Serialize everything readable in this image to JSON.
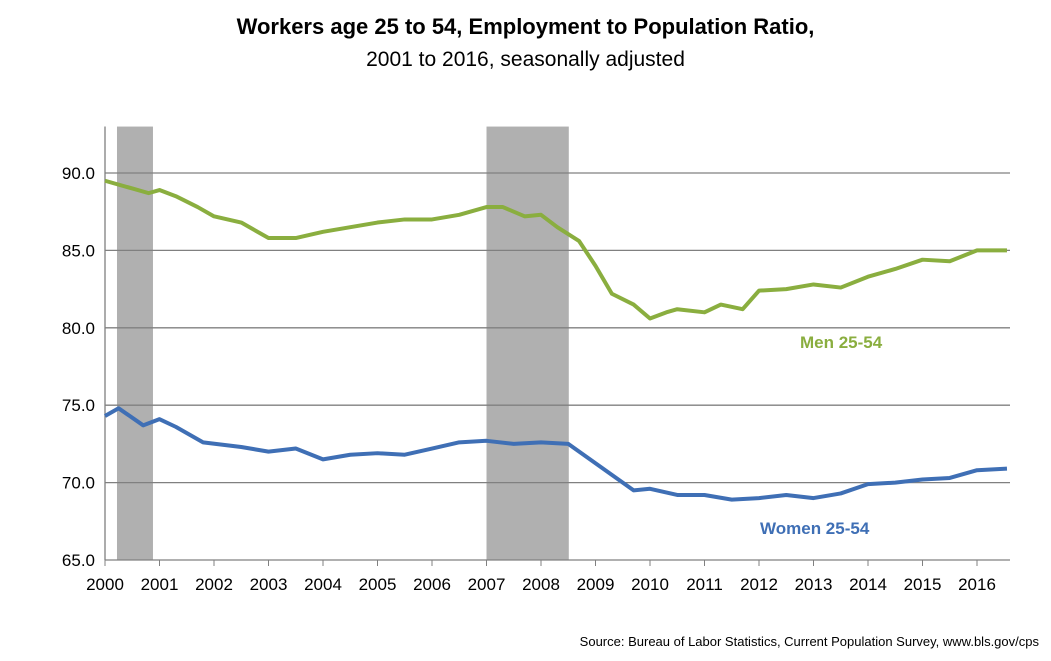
{
  "chart_data": {
    "type": "line",
    "title": "Workers age 25 to 54, Employment to Population Ratio,",
    "subtitle": "2001 to 2016, seasonally adjusted",
    "source": "Source: Bureau of Labor Statistics, Current Population Survey, www.bls.gov/cps",
    "ylim": [
      65,
      93
    ],
    "xlim": [
      2000,
      2016.6
    ],
    "yticks": [
      "65.0",
      "70.0",
      "75.0",
      "80.0",
      "85.0",
      "90.0"
    ],
    "xticks": [
      "2000",
      "2001",
      "2002",
      "2003",
      "2004",
      "2005",
      "2006",
      "2007",
      "2008",
      "2009",
      "2010",
      "2011",
      "2012",
      "2013",
      "2014",
      "2015",
      "2016"
    ],
    "grid": true,
    "shaded_periods": [
      [
        2000.22,
        2000.88
      ],
      [
        2007.0,
        2008.51
      ]
    ],
    "series": [
      {
        "name": "Men 25-54",
        "color": "#8aae3f",
        "x": [
          2000,
          2000.5,
          2000.8,
          2001,
          2001.3,
          2001.7,
          2002,
          2002.5,
          2003,
          2003.5,
          2004,
          2004.5,
          2005,
          2005.5,
          2006,
          2006.5,
          2007,
          2007.3,
          2007.7,
          2008,
          2008.3,
          2008.7,
          2009,
          2009.3,
          2009.7,
          2010,
          2010.3,
          2010.5,
          2011,
          2011.3,
          2011.7,
          2012,
          2012.5,
          2013,
          2013.5,
          2014,
          2014.5,
          2015,
          2015.5,
          2016,
          2016.55
        ],
        "y": [
          89.5,
          89.0,
          88.7,
          88.9,
          88.5,
          87.8,
          87.2,
          86.8,
          85.8,
          85.8,
          86.2,
          86.5,
          86.8,
          87.0,
          87.0,
          87.3,
          87.8,
          87.8,
          87.2,
          87.3,
          86.5,
          85.6,
          84.0,
          82.2,
          81.5,
          80.6,
          81.0,
          81.2,
          81.0,
          81.5,
          81.2,
          82.4,
          82.5,
          82.8,
          82.6,
          83.3,
          83.8,
          84.4,
          84.3,
          85.0,
          85.0
        ]
      },
      {
        "name": "Women 25-54",
        "color": "#3f6fb5",
        "x": [
          2000,
          2000.25,
          2000.7,
          2001,
          2001.3,
          2001.8,
          2002.5,
          2003,
          2003.5,
          2004,
          2004.5,
          2005,
          2005.5,
          2006,
          2006.5,
          2007,
          2007.5,
          2008,
          2008.5,
          2008.9,
          2009.3,
          2009.7,
          2010,
          2010.5,
          2011,
          2011.5,
          2012,
          2012.5,
          2013,
          2013.5,
          2014,
          2014.5,
          2015,
          2015.5,
          2016,
          2016.55
        ],
        "y": [
          74.3,
          74.8,
          73.7,
          74.1,
          73.6,
          72.6,
          72.3,
          72.0,
          72.2,
          71.5,
          71.8,
          71.9,
          71.8,
          72.2,
          72.6,
          72.7,
          72.5,
          72.6,
          72.5,
          71.5,
          70.5,
          69.5,
          69.6,
          69.2,
          69.2,
          68.9,
          69.0,
          69.2,
          69.0,
          69.3,
          69.9,
          70.0,
          70.2,
          70.3,
          70.8,
          70.9
        ]
      }
    ]
  }
}
